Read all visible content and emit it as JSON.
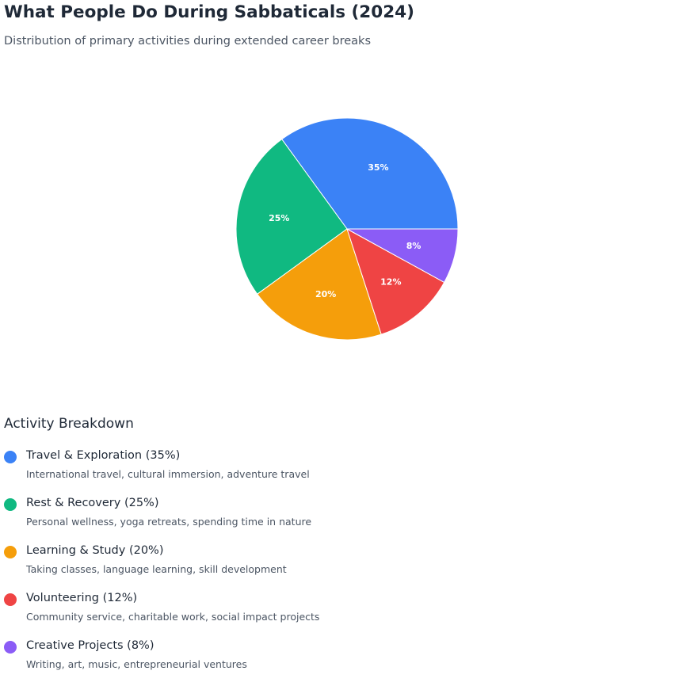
{
  "header": {
    "title": "What People Do During Sabbaticals (2024)",
    "subtitle": "Distribution of primary activities during extended career breaks"
  },
  "breakdown": {
    "heading": "Activity Breakdown",
    "items": [
      {
        "label": "Travel & Exploration (35%)",
        "description": "International travel, cultural immersion, adventure travel",
        "color": "#3b82f6"
      },
      {
        "label": "Rest & Recovery (25%)",
        "description": "Personal wellness, yoga retreats, spending time in nature",
        "color": "#10b981"
      },
      {
        "label": "Learning & Study (20%)",
        "description": "Taking classes, language learning, skill development",
        "color": "#f59e0b"
      },
      {
        "label": "Volunteering (12%)",
        "description": "Community service, charitable work, social impact projects",
        "color": "#ef4444"
      },
      {
        "label": "Creative Projects (8%)",
        "description": "Writing, art, music, entrepreneurial ventures",
        "color": "#8b5cf6"
      }
    ]
  },
  "chart_data": {
    "type": "pie",
    "title": "What People Do During Sabbaticals (2024)",
    "subtitle": "Distribution of primary activities during extended career breaks",
    "categories": [
      "Travel & Exploration",
      "Rest & Recovery",
      "Learning & Study",
      "Volunteering",
      "Creative Projects"
    ],
    "values": [
      35,
      25,
      20,
      12,
      8
    ],
    "labels": [
      "35%",
      "25%",
      "20%",
      "12%",
      "8%"
    ],
    "colors": [
      "#3b82f6",
      "#10b981",
      "#f59e0b",
      "#ef4444",
      "#8b5cf6"
    ],
    "start_direction": "3 o'clock",
    "direction": "counter-clockwise",
    "legend": "below"
  }
}
